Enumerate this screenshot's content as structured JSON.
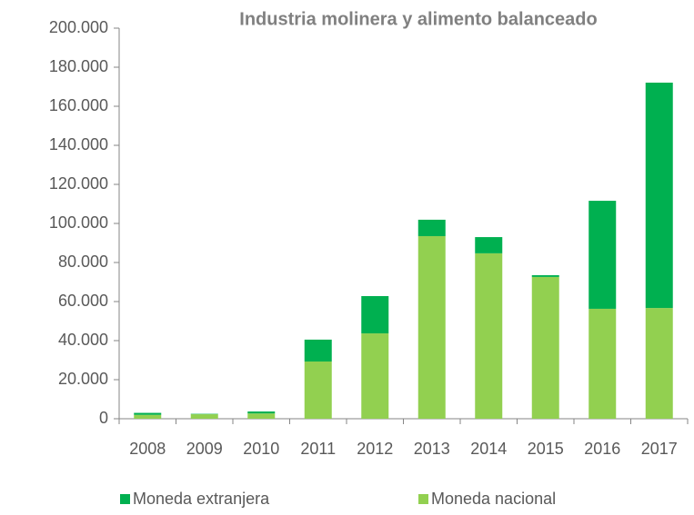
{
  "chart_data": {
    "type": "stacked_bar",
    "title": "Industria molinera y alimento balanceado",
    "categories": [
      "2008",
      "2009",
      "2010",
      "2011",
      "2012",
      "2013",
      "2014",
      "2015",
      "2016",
      "2017"
    ],
    "series": [
      {
        "name": "Moneda extranjera",
        "color": "#00b050",
        "values": [
          1000,
          200,
          1000,
          11200,
          19100,
          8400,
          8300,
          900,
          55300,
          115400
        ]
      },
      {
        "name": "Moneda nacional",
        "color": "#92d050",
        "values": [
          2000,
          2300,
          2700,
          29300,
          43700,
          93500,
          84700,
          72600,
          56300,
          56700
        ]
      }
    ],
    "stack_order": "reverse",
    "ylim": [
      0,
      200000
    ],
    "yticks": [
      0,
      {
        "value": 20000,
        "label": "20.000"
      },
      {
        "value": 40000,
        "label": "40.000"
      },
      {
        "value": 60000,
        "label": "60.000"
      },
      {
        "value": 80000,
        "label": "80.000"
      },
      {
        "value": 100000,
        "label": "100.000"
      },
      {
        "value": 120000,
        "label": "120.000"
      },
      {
        "value": 140000,
        "label": "140.000"
      },
      {
        "value": 160000,
        "label": "160.000"
      },
      {
        "value": 180000,
        "label": "180.000"
      },
      {
        "value": 200000,
        "label": "200.000"
      }
    ],
    "grid": false,
    "legend": "bottom"
  }
}
